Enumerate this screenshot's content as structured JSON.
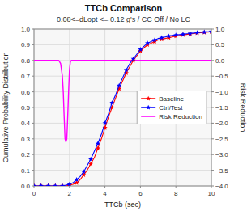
{
  "chart_data": {
    "type": "line",
    "title": "TTCb Comparison",
    "subtitle": "0.08<=dLopt <= 0.12 g's / CC Off / No LC",
    "xlabel": "TTCb (sec)",
    "ylabel": "Cumulative Probability Distribution",
    "y2label": "Risk Reduction",
    "xlim": [
      0.0,
      10.0
    ],
    "ylim": [
      0.0,
      1.0
    ],
    "y2lim": [
      -4.0,
      1.0
    ],
    "xticks": [
      0,
      2,
      4,
      6,
      8,
      10
    ],
    "yticks": [
      {
        "value": 0.0,
        "label": "0.0"
      },
      0.1,
      0.2,
      0.3,
      0.4,
      0.5,
      0.6,
      0.7,
      0.8,
      0.9,
      {
        "value": 1.0,
        "label": "1.0"
      }
    ],
    "y2ticks": [
      {
        "value": -4.0,
        "label": "−4.0"
      },
      {
        "value": -3.5,
        "label": "−3.5"
      },
      {
        "value": -3.0,
        "label": "−3.0"
      },
      {
        "value": -2.5,
        "label": "−2.5"
      },
      {
        "value": -2.0,
        "label": "−2.0"
      },
      {
        "value": -1.5,
        "label": "−1.5"
      },
      {
        "value": -1.0,
        "label": "−1.0"
      },
      {
        "value": -0.5,
        "label": "−0.5"
      },
      {
        "value": 0.0,
        "label": "0.0"
      },
      0.5,
      {
        "value": 1.0,
        "label": "1.0"
      }
    ],
    "grid": true,
    "legend": "right",
    "series": [
      {
        "name": "Baseline",
        "color": "#FF0000",
        "marker": "star",
        "x": [
          0.0,
          0.2,
          0.4,
          0.6,
          0.8,
          1.0,
          1.2,
          1.4,
          1.6,
          1.8,
          2.0,
          2.2,
          2.4,
          2.6,
          2.8,
          3.0,
          3.2,
          3.4,
          3.6,
          3.8,
          4.0,
          4.2,
          4.4,
          4.6,
          4.8,
          5.0,
          5.2,
          5.4,
          5.6,
          5.8,
          6.0,
          6.2,
          6.4,
          6.6,
          6.8,
          7.0,
          7.2,
          7.4,
          7.6,
          7.8,
          8.0,
          8.2,
          8.4,
          8.6,
          8.8,
          9.0,
          9.2,
          9.4,
          9.6,
          9.8,
          10.0
        ],
        "values": [
          0.0,
          0.0,
          0.0,
          0.0,
          0.0,
          0.0,
          0.0,
          0.0,
          0.0,
          0.0,
          0.005,
          0.01,
          0.02,
          0.04,
          0.07,
          0.1,
          0.14,
          0.18,
          0.24,
          0.3,
          0.37,
          0.44,
          0.5,
          0.56,
          0.62,
          0.67,
          0.72,
          0.76,
          0.8,
          0.83,
          0.86,
          0.88,
          0.9,
          0.91,
          0.92,
          0.93,
          0.935,
          0.94,
          0.945,
          0.95,
          0.955,
          0.96,
          0.963,
          0.966,
          0.969,
          0.972,
          0.975,
          0.977,
          0.979,
          0.981,
          0.983
        ]
      },
      {
        "name": "Ctrl/Test",
        "color": "#0000FF",
        "marker": "star",
        "x": [
          0.0,
          0.2,
          0.4,
          0.6,
          0.8,
          1.0,
          1.2,
          1.4,
          1.6,
          1.8,
          2.0,
          2.2,
          2.4,
          2.6,
          2.8,
          3.0,
          3.2,
          3.4,
          3.6,
          3.8,
          4.0,
          4.2,
          4.4,
          4.6,
          4.8,
          5.0,
          5.2,
          5.4,
          5.6,
          5.8,
          6.0,
          6.2,
          6.4,
          6.6,
          6.8,
          7.0,
          7.2,
          7.4,
          7.6,
          7.8,
          8.0,
          8.2,
          8.4,
          8.6,
          8.8,
          9.0,
          9.2,
          9.4,
          9.6,
          9.8,
          10.0
        ],
        "values": [
          0.0,
          0.0,
          0.0,
          0.0,
          0.0,
          0.0,
          0.0,
          0.0,
          0.0,
          0.005,
          0.01,
          0.02,
          0.04,
          0.06,
          0.09,
          0.13,
          0.17,
          0.22,
          0.27,
          0.33,
          0.4,
          0.46,
          0.53,
          0.58,
          0.64,
          0.69,
          0.74,
          0.78,
          0.81,
          0.84,
          0.87,
          0.89,
          0.91,
          0.92,
          0.93,
          0.94,
          0.945,
          0.95,
          0.955,
          0.96,
          0.962,
          0.965,
          0.967,
          0.97,
          0.972,
          0.975,
          0.977,
          0.979,
          0.981,
          0.983,
          0.985
        ]
      },
      {
        "name": "Risk Reduction",
        "color": "#FF00FF",
        "axis": "y2",
        "x": [
          0.0,
          1.4,
          1.5,
          1.6,
          1.65,
          1.7,
          1.75,
          1.8,
          1.85,
          1.9,
          1.95,
          2.0,
          2.05,
          2.1,
          2.2,
          2.4,
          10.0
        ],
        "values": [
          0.0,
          0.0,
          -0.1,
          -0.5,
          -1.0,
          -1.8,
          -2.5,
          -2.6,
          -2.5,
          -1.8,
          -1.0,
          -0.3,
          -0.05,
          0.0,
          0.0,
          0.0,
          0.0
        ]
      }
    ]
  }
}
